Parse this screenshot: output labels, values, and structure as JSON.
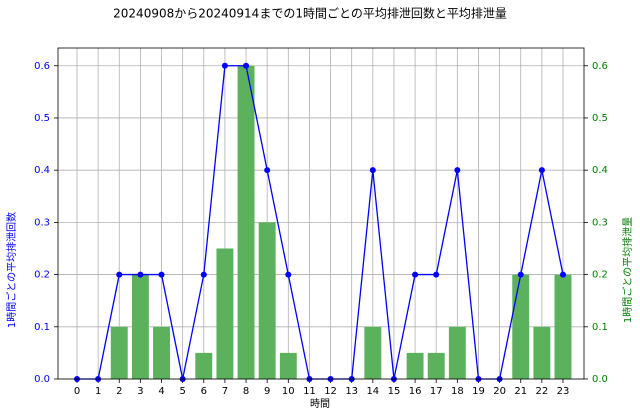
{
  "chart_data": {
    "type": "combo",
    "title": "20240908から20240914までの1時間ごとの平均排泄回数と平均排泄量",
    "x_label": "時間",
    "y_label": "1時間ごとの平均排泄回数",
    "y2_label": "1時間ごとの平均排泄量",
    "categories": [
      "0",
      "1",
      "2",
      "3",
      "4",
      "5",
      "6",
      "7",
      "8",
      "9",
      "10",
      "11",
      "12",
      "13",
      "14",
      "15",
      "16",
      "17",
      "18",
      "19",
      "20",
      "21",
      "22",
      "23"
    ],
    "series": [
      {
        "name": "1時間ごとの平均排泄量",
        "kind": "bar",
        "axis": "y2",
        "color": "#5cb25c",
        "values": [
          0,
          0,
          0.1,
          0.2,
          0.1,
          0,
          0.05,
          0.25,
          0.6,
          0.3,
          0.05,
          0,
          0,
          0,
          0.1,
          0,
          0.05,
          0.05,
          0.1,
          0,
          0,
          0.2,
          0.1,
          0.2
        ]
      },
      {
        "name": "1時間ごとの平均排泄回数",
        "kind": "line",
        "axis": "y",
        "color": "#0000ff",
        "values": [
          0,
          0,
          0.2,
          0.2,
          0.2,
          0,
          0.2,
          0.6,
          0.6,
          0.4,
          0.2,
          0,
          0,
          0,
          0.4,
          0,
          0.2,
          0.2,
          0.4,
          0,
          0,
          0.2,
          0.4,
          0.2
        ]
      }
    ],
    "ylim": [
      0,
      0.634
    ],
    "yticks": [
      {
        "value": 0,
        "label": "0.0"
      },
      0.1,
      0.2,
      0.3,
      0.4,
      0.5,
      0.6
    ],
    "y2lim": [
      0,
      0.634
    ],
    "y2ticks": [
      {
        "value": 0,
        "label": "0.0"
      },
      0.1,
      0.2,
      0.3,
      0.4,
      0.5,
      0.6
    ],
    "y_color": "#0000ff",
    "y2_color": "#008000",
    "grid": true
  }
}
